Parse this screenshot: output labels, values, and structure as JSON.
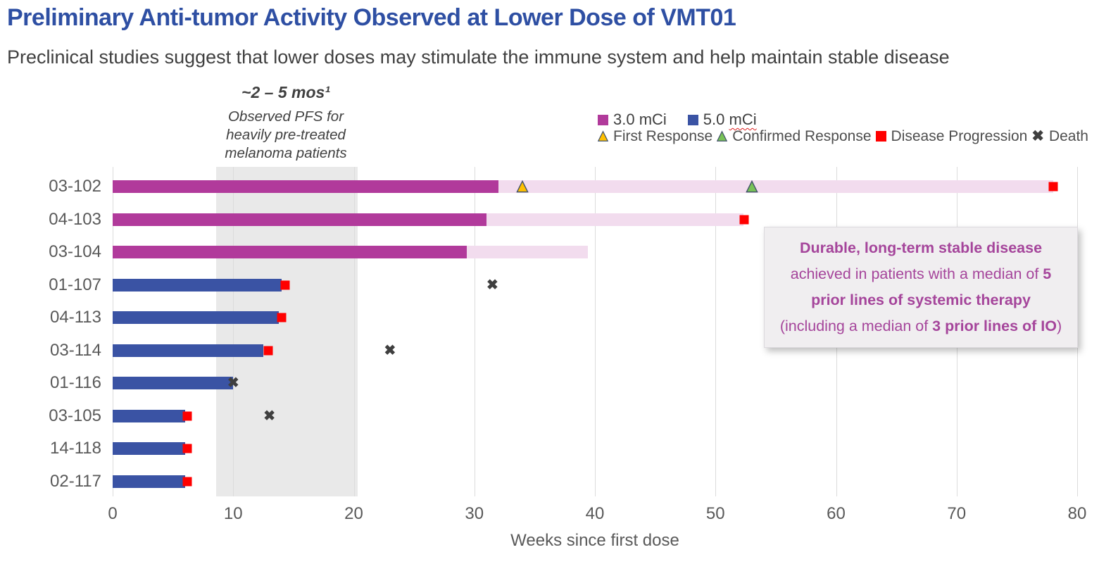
{
  "title": "Preliminary Anti-tumor Activity Observed at Lower Dose of VMT01",
  "subtitle": "Preclinical studies suggest that lower doses may stimulate the immune system and help maintain stable disease",
  "annotation": {
    "heading": "~2 – 5 mos¹",
    "lines": [
      "Observed PFS for",
      "heavily pre-treated",
      "melanoma patients"
    ]
  },
  "legend": {
    "dose": [
      {
        "label": "3.0 mCi",
        "color": "#b13a9b"
      },
      {
        "label_a": "5.0",
        "label_b": "mCi",
        "color": "#3a53a4"
      }
    ],
    "events": [
      {
        "label": "First Response",
        "marker": "triangle",
        "color": "#ffc000"
      },
      {
        "label": "Confirmed Response",
        "marker": "triangle",
        "color": "#77c257"
      },
      {
        "label": "Disease Progression",
        "marker": "square",
        "color": "#ff0000"
      },
      {
        "label": "Death",
        "marker": "x",
        "color": "#3f3f3f"
      }
    ]
  },
  "callout": {
    "l1": "Durable, long-term stable disease",
    "l2a": "achieved in patients with a median of ",
    "l2b": "5",
    "l3": "prior lines of systemic therapy",
    "l4a": "(including a median of ",
    "l4b": "3 prior lines of IO",
    "l4c": ")"
  },
  "chart_data": {
    "type": "bar",
    "variant": "swimmer-plot",
    "xlabel": "Weeks since first dose",
    "xaxis": {
      "min": 0,
      "max": 80,
      "ticks": [
        0,
        10,
        20,
        30,
        40,
        50,
        60,
        70,
        80
      ]
    },
    "shaded_region": {
      "start_week": 8.6,
      "end_week": 20.3,
      "meaning": "Observed PFS for heavily pre-treated melanoma patients, ~2 – 5 mos"
    },
    "patients": [
      {
        "id": "03-102",
        "dose": "3.0 mCi",
        "solid_end": 32,
        "light_end": 78,
        "markers": [
          {
            "type": "first_response",
            "week": 34
          },
          {
            "type": "confirmed_response",
            "week": 53
          },
          {
            "type": "progression",
            "week": 78
          }
        ]
      },
      {
        "id": "04-103",
        "dose": "3.0 mCi",
        "solid_end": 31,
        "light_end": 52.3,
        "markers": [
          {
            "type": "progression",
            "week": 52.4
          }
        ]
      },
      {
        "id": "03-104",
        "dose": "3.0 mCi",
        "solid_end": 29.4,
        "light_end": 39.4,
        "markers": []
      },
      {
        "id": "01-107",
        "dose": "5.0 mCi",
        "solid_end": 14,
        "light_end": null,
        "markers": [
          {
            "type": "progression",
            "week": 14.3
          },
          {
            "type": "death",
            "week": 31.5
          }
        ]
      },
      {
        "id": "04-113",
        "dose": "5.0 mCi",
        "solid_end": 13.8,
        "light_end": null,
        "markers": [
          {
            "type": "progression",
            "week": 14
          }
        ]
      },
      {
        "id": "03-114",
        "dose": "5.0 mCi",
        "solid_end": 12.5,
        "light_end": null,
        "markers": [
          {
            "type": "progression",
            "week": 12.9
          },
          {
            "type": "death",
            "week": 23
          }
        ]
      },
      {
        "id": "01-116",
        "dose": "5.0 mCi",
        "solid_end": 10,
        "light_end": null,
        "markers": [
          {
            "type": "death",
            "week": 10
          }
        ]
      },
      {
        "id": "03-105",
        "dose": "5.0 mCi",
        "solid_end": 6,
        "light_end": null,
        "markers": [
          {
            "type": "progression",
            "week": 6.2
          },
          {
            "type": "death",
            "week": 13
          }
        ]
      },
      {
        "id": "14-118",
        "dose": "5.0 mCi",
        "solid_end": 6,
        "light_end": null,
        "markers": [
          {
            "type": "progression",
            "week": 6.2
          }
        ]
      },
      {
        "id": "02-117",
        "dose": "5.0 mCi",
        "solid_end": 6,
        "light_end": null,
        "markers": [
          {
            "type": "progression",
            "week": 6.2
          }
        ]
      }
    ]
  },
  "colors": {
    "title": "#2e4fa3",
    "subtitle": "#404040",
    "magenta_solid": "#b13a9b",
    "magenta_light": "#f2dcee",
    "blue_solid": "#3a53a4",
    "gold": "#ffc000",
    "green": "#77c257",
    "marker_border": "#44546a",
    "red": "#ff0000",
    "death": "#3f3f3f",
    "band": "#e9e9e9",
    "grid": "#dcdcdc",
    "axis_text": "#595959",
    "callout_text": "#a5459b",
    "callout_bg": "#f0eef0"
  }
}
